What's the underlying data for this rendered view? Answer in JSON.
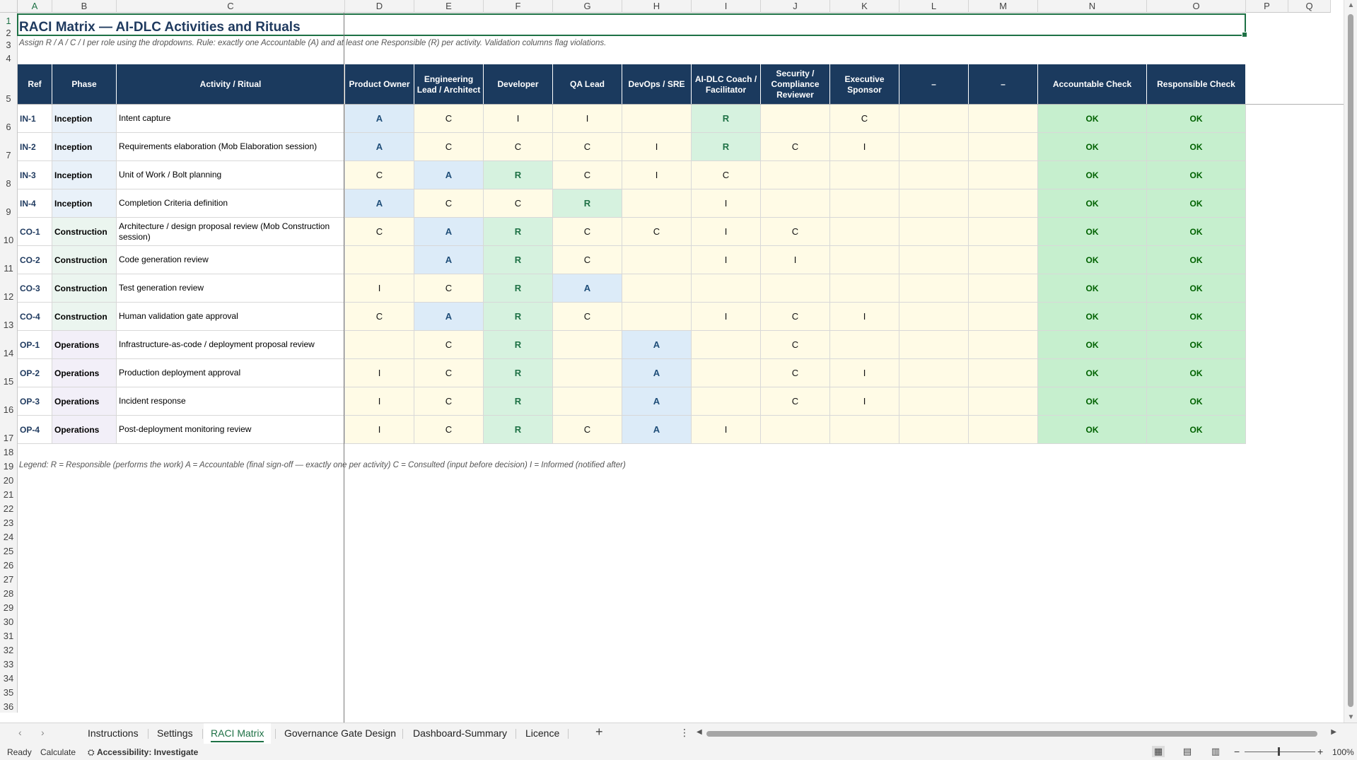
{
  "sheet": {
    "columns": [
      "A",
      "B",
      "C",
      "D",
      "E",
      "F",
      "G",
      "H",
      "I",
      "J",
      "K",
      "L",
      "M",
      "N",
      "O",
      "P",
      "Q"
    ],
    "rows": [
      "1",
      "2",
      "3",
      "4",
      "5",
      "6",
      "7",
      "8",
      "9",
      "10",
      "11",
      "12",
      "13",
      "14",
      "15",
      "16",
      "17",
      "18",
      "19",
      "20",
      "21",
      "22",
      "23",
      "24",
      "25",
      "26",
      "27",
      "28",
      "29",
      "30",
      "31",
      "32",
      "33",
      "34",
      "35",
      "36"
    ],
    "title": "RACI Matrix — AI-DLC Activities and Rituals",
    "subtitle": "Assign R / A / C / I per role using the dropdowns. Rule: exactly one Accountable (A) and at least one Responsible (R) per activity. Validation columns flag violations.",
    "headers": [
      "Ref",
      "Phase",
      "Activity / Ritual",
      "Product Owner",
      "Engineering Lead / Architect",
      "Developer",
      "QA Lead",
      "DevOps / SRE",
      "AI-DLC Coach / Facilitator",
      "Security / Compliance Reviewer",
      "Executive Sponsor",
      "–",
      "–",
      "Accountable Check",
      "Responsible Check"
    ],
    "data_rows": [
      {
        "ref": "IN-1",
        "phase": "Inception",
        "activity": "Intent capture",
        "raci": [
          "A",
          "C",
          "I",
          "I",
          "",
          "R",
          "",
          "C",
          "",
          ""
        ],
        "acc": "OK",
        "resp": "OK"
      },
      {
        "ref": "IN-2",
        "phase": "Inception",
        "activity": "Requirements elaboration (Mob Elaboration session)",
        "raci": [
          "A",
          "C",
          "C",
          "C",
          "I",
          "R",
          "C",
          "I",
          "",
          ""
        ],
        "acc": "OK",
        "resp": "OK"
      },
      {
        "ref": "IN-3",
        "phase": "Inception",
        "activity": "Unit of Work / Bolt planning",
        "raci": [
          "C",
          "A",
          "R",
          "C",
          "I",
          "C",
          "",
          "",
          "",
          ""
        ],
        "acc": "OK",
        "resp": "OK"
      },
      {
        "ref": "IN-4",
        "phase": "Inception",
        "activity": "Completion Criteria definition",
        "raci": [
          "A",
          "C",
          "C",
          "R",
          "",
          "I",
          "",
          "",
          "",
          ""
        ],
        "acc": "OK",
        "resp": "OK"
      },
      {
        "ref": "CO-1",
        "phase": "Construction",
        "activity": "Architecture / design proposal review (Mob Construction session)",
        "raci": [
          "C",
          "A",
          "R",
          "C",
          "C",
          "I",
          "C",
          "",
          "",
          ""
        ],
        "acc": "OK",
        "resp": "OK"
      },
      {
        "ref": "CO-2",
        "phase": "Construction",
        "activity": "Code generation review",
        "raci": [
          "",
          "A",
          "R",
          "C",
          "",
          "I",
          "I",
          "",
          "",
          ""
        ],
        "acc": "OK",
        "resp": "OK"
      },
      {
        "ref": "CO-3",
        "phase": "Construction",
        "activity": "Test generation review",
        "raci": [
          "I",
          "C",
          "R",
          "A",
          "",
          "",
          "",
          "",
          "",
          ""
        ],
        "acc": "OK",
        "resp": "OK"
      },
      {
        "ref": "CO-4",
        "phase": "Construction",
        "activity": "Human validation gate approval",
        "raci": [
          "C",
          "A",
          "R",
          "C",
          "",
          "I",
          "C",
          "I",
          "",
          ""
        ],
        "acc": "OK",
        "resp": "OK"
      },
      {
        "ref": "OP-1",
        "phase": "Operations",
        "activity": "Infrastructure-as-code / deployment proposal review",
        "raci": [
          "",
          "C",
          "R",
          "",
          "A",
          "",
          "C",
          "",
          "",
          ""
        ],
        "acc": "OK",
        "resp": "OK"
      },
      {
        "ref": "OP-2",
        "phase": "Operations",
        "activity": "Production deployment approval",
        "raci": [
          "I",
          "C",
          "R",
          "",
          "A",
          "",
          "C",
          "I",
          "",
          ""
        ],
        "acc": "OK",
        "resp": "OK"
      },
      {
        "ref": "OP-3",
        "phase": "Operations",
        "activity": "Incident response",
        "raci": [
          "I",
          "C",
          "R",
          "",
          "A",
          "",
          "C",
          "I",
          "",
          ""
        ],
        "acc": "OK",
        "resp": "OK"
      },
      {
        "ref": "OP-4",
        "phase": "Operations",
        "activity": "Post-deployment monitoring review",
        "raci": [
          "I",
          "C",
          "R",
          "C",
          "A",
          "I",
          "",
          "",
          "",
          ""
        ],
        "acc": "OK",
        "resp": "OK"
      }
    ],
    "legend": "Legend:  R = Responsible (performs the work)   A = Accountable (final sign-off — exactly one per activity)   C = Consulted (input before decision)   I = Informed (notified after)"
  },
  "tabs": [
    "Instructions",
    "Settings",
    "RACI Matrix",
    "Governance Gate Design",
    "Dashboard-Summary",
    "Licence"
  ],
  "active_tab": "RACI Matrix",
  "add_sheet": "+",
  "status": {
    "ready": "Ready",
    "calculate": "Calculate",
    "accessibility": "Accessibility: Investigate",
    "zoom_minus": "−",
    "zoom_plus": "+",
    "zoom": "100%"
  },
  "colors": {
    "header_bg": "#1b3a5e",
    "accent": "#1e7145",
    "ok_bg": "#c6efce",
    "ok_text": "#006100"
  }
}
